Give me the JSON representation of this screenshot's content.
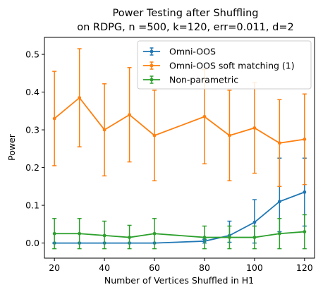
{
  "chart_data": {
    "type": "line",
    "title_line1": "Power Testing after Shuffling",
    "title_line2": "on RDPG, n =500, k=120, err=0.011, d=2",
    "xlabel": "Number of Vertices Shuffled in H1",
    "ylabel": "Power",
    "xlim": [
      16,
      124
    ],
    "ylim": [
      -0.04,
      0.545
    ],
    "xticks": [
      20,
      40,
      60,
      80,
      100,
      120
    ],
    "xtick_labels": [
      "20",
      "40",
      "60",
      "80",
      "100",
      "120"
    ],
    "yticks": [
      0.0,
      0.1,
      0.2,
      0.3,
      0.4,
      0.5
    ],
    "ytick_labels": [
      "0.0",
      "0.1",
      "0.2",
      "0.3",
      "0.4",
      "0.5"
    ],
    "grid": false,
    "legend_position": "top-right",
    "x": [
      20,
      30,
      40,
      50,
      60,
      80,
      90,
      100,
      110,
      120
    ],
    "series": [
      {
        "name": "Omni-OOS",
        "color": "#1f77b4",
        "values": [
          0.0,
          0.0,
          0.0,
          0.0,
          0.0,
          0.005,
          0.02,
          0.055,
          0.11,
          0.135
        ],
        "err_low": [
          0.0,
          0.0,
          0.0,
          0.0,
          0.0,
          0.005,
          0.018,
          0.055,
          0.08,
          0.09
        ],
        "err_high": [
          0.0,
          0.0,
          0.0,
          0.0,
          0.0,
          0.005,
          0.038,
          0.06,
          0.115,
          0.09
        ]
      },
      {
        "name": "Omni-OOS soft matching (1)",
        "color": "#ff7f0e",
        "values": [
          0.33,
          0.385,
          0.3,
          0.34,
          0.285,
          0.335,
          0.285,
          0.305,
          0.265,
          0.275
        ],
        "err_low": [
          0.125,
          0.13,
          0.122,
          0.125,
          0.12,
          0.125,
          0.12,
          0.12,
          0.115,
          0.12
        ],
        "err_high": [
          0.125,
          0.13,
          0.122,
          0.125,
          0.12,
          0.125,
          0.12,
          0.12,
          0.115,
          0.12
        ]
      },
      {
        "name": "Non-parametric",
        "color": "#2ca02c",
        "values": [
          0.025,
          0.025,
          0.02,
          0.015,
          0.025,
          0.015,
          0.015,
          0.015,
          0.025,
          0.03
        ],
        "err_low": [
          0.04,
          0.04,
          0.035,
          0.03,
          0.04,
          0.03,
          0.03,
          0.03,
          0.04,
          0.045
        ],
        "err_high": [
          0.04,
          0.04,
          0.038,
          0.032,
          0.04,
          0.03,
          0.03,
          0.03,
          0.04,
          0.045
        ]
      }
    ]
  }
}
